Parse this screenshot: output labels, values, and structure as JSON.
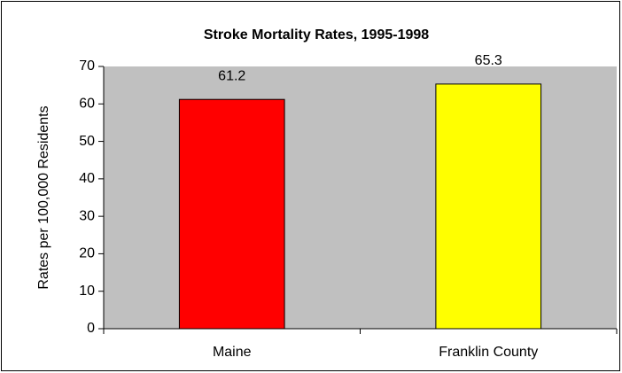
{
  "chart_data": {
    "type": "bar",
    "title": "Stroke Mortality Rates, 1995-1998",
    "y_label": "Rates per 100,000 Residents",
    "categories": [
      "Maine",
      "Franklin County"
    ],
    "values": [
      61.2,
      65.3
    ],
    "colors": [
      "#ff0000",
      "#ffff00"
    ],
    "ylim": [
      0,
      70
    ],
    "yticks": [
      0,
      10,
      20,
      30,
      40,
      50,
      60,
      70
    ],
    "grid": false
  }
}
